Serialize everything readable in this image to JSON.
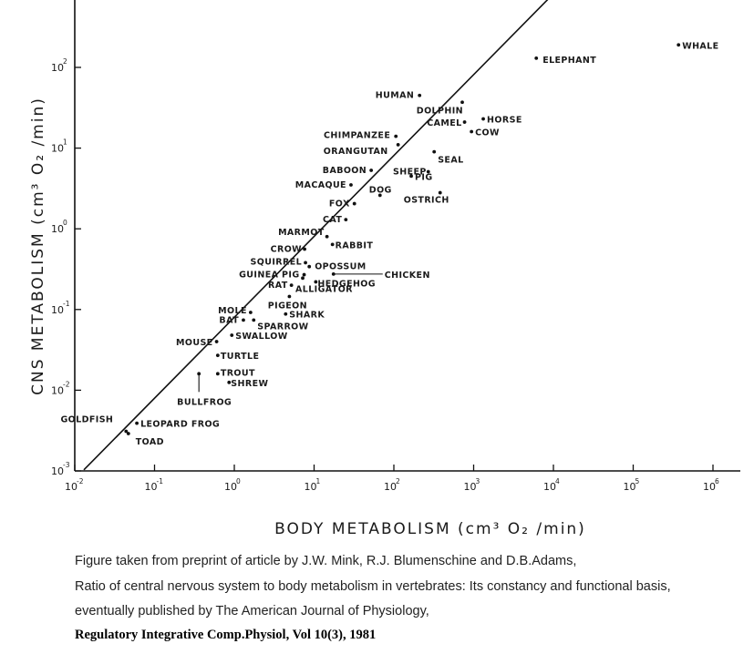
{
  "chart_data": {
    "type": "scatter",
    "log_x": true,
    "log_y": true,
    "xlim": [
      0.01,
      1000000
    ],
    "ylim": [
      0.001,
      500
    ],
    "x_ticks": [
      {
        "base": "10",
        "exp": "-2"
      },
      {
        "base": "10",
        "exp": "-1"
      },
      {
        "base": "10",
        "exp": "0"
      },
      {
        "base": "10",
        "exp": "1"
      },
      {
        "base": "10",
        "exp": "2"
      },
      {
        "base": "10",
        "exp": "3"
      },
      {
        "base": "10",
        "exp": "4"
      },
      {
        "base": "10",
        "exp": "5"
      },
      {
        "base": "10",
        "exp": "6"
      }
    ],
    "y_ticks": [
      {
        "base": "10",
        "exp": "-3"
      },
      {
        "base": "10",
        "exp": "-2"
      },
      {
        "base": "10",
        "exp": "-1"
      },
      {
        "base": "10",
        "exp": "0"
      },
      {
        "base": "10",
        "exp": "1"
      },
      {
        "base": "10",
        "exp": "2"
      }
    ],
    "xlabel": "BODY METABOLISM (cm³ O₂ /min)",
    "ylabel": "CNS METABOLISM (cm³ O₂ /min)",
    "fit_line": {
      "x": [
        0.013,
        11000
      ],
      "y": [
        0.00103,
        900
      ]
    },
    "points": [
      {
        "name": "WHALE",
        "x": 370000,
        "y": 190
      },
      {
        "name": "ELEPHANT",
        "x": 6100,
        "y": 130
      },
      {
        "name": "HUMAN",
        "x": 210,
        "y": 45
      },
      {
        "name": "DOLPHIN",
        "x": 720,
        "y": 37
      },
      {
        "name": "CAMEL",
        "x": 770,
        "y": 21
      },
      {
        "name": "HORSE",
        "x": 1320,
        "y": 23
      },
      {
        "name": "COW",
        "x": 940,
        "y": 16
      },
      {
        "name": "CHIMPANZEE",
        "x": 106,
        "y": 14
      },
      {
        "name": "ORANGUTAN",
        "x": 113,
        "y": 11
      },
      {
        "name": "SEAL",
        "x": 320,
        "y": 9
      },
      {
        "name": "BABOON",
        "x": 52,
        "y": 5.3
      },
      {
        "name": "SHEEP",
        "x": 270,
        "y": 5.1
      },
      {
        "name": "PIG",
        "x": 165,
        "y": 4.5
      },
      {
        "name": "MACAQUE",
        "x": 29,
        "y": 3.5
      },
      {
        "name": "DOG",
        "x": 67,
        "y": 2.6
      },
      {
        "name": "OSTRICH",
        "x": 380,
        "y": 2.8
      },
      {
        "name": "FOX",
        "x": 32,
        "y": 2.05
      },
      {
        "name": "CAT",
        "x": 25,
        "y": 1.3
      },
      {
        "name": "MARMOT",
        "x": 14.5,
        "y": 0.8
      },
      {
        "name": "RABBIT",
        "x": 17,
        "y": 0.64
      },
      {
        "name": "CROW",
        "x": 7.6,
        "y": 0.56
      },
      {
        "name": "SQUIRREL",
        "x": 7.8,
        "y": 0.38
      },
      {
        "name": "OPOSSUM",
        "x": 8.7,
        "y": 0.34
      },
      {
        "name": "GUINEA PIG",
        "x": 7.5,
        "y": 0.27
      },
      {
        "name": "CHICKEN",
        "x": 17.5,
        "y": 0.275
      },
      {
        "name": "RAT",
        "x": 5.2,
        "y": 0.2
      },
      {
        "name": "HEDGEHOG",
        "x": 10.5,
        "y": 0.22
      },
      {
        "name": "ALLIGATOR",
        "x": 7.2,
        "y": 0.245
      },
      {
        "name": "PIGEON",
        "x": 4.9,
        "y": 0.145
      },
      {
        "name": "SHARK",
        "x": 4.4,
        "y": 0.088
      },
      {
        "name": "MOLE",
        "x": 1.6,
        "y": 0.092
      },
      {
        "name": "BAT",
        "x": 1.3,
        "y": 0.074
      },
      {
        "name": "SPARROW",
        "x": 1.75,
        "y": 0.074
      },
      {
        "name": "SWALLOW",
        "x": 0.93,
        "y": 0.048
      },
      {
        "name": "MOUSE",
        "x": 0.6,
        "y": 0.04
      },
      {
        "name": "TURTLE",
        "x": 0.62,
        "y": 0.027
      },
      {
        "name": "TROUT",
        "x": 0.62,
        "y": 0.016
      },
      {
        "name": "SHREW",
        "x": 0.86,
        "y": 0.0125
      },
      {
        "name": "BULLFROG",
        "x": 0.36,
        "y": 0.016
      },
      {
        "name": "LEOPARD FROG",
        "x": 0.06,
        "y": 0.0039
      },
      {
        "name": "GOLDFISH",
        "x": 0.044,
        "y": 0.0031
      },
      {
        "name": "TOAD",
        "x": 0.047,
        "y": 0.0029
      }
    ]
  },
  "caption": {
    "line1": "Figure taken from preprint of article by J.W. Mink, R.J. Blumenschine and D.B.Adams,",
    "line2": "Ratio of central nervous system to body metabolism in vertebrates: Its constancy and functional basis,",
    "line3": "eventually published by The American Journal of Physiology,",
    "line4": "Regulatory Integrative Comp.Physiol, Vol 10(3), 1981"
  }
}
